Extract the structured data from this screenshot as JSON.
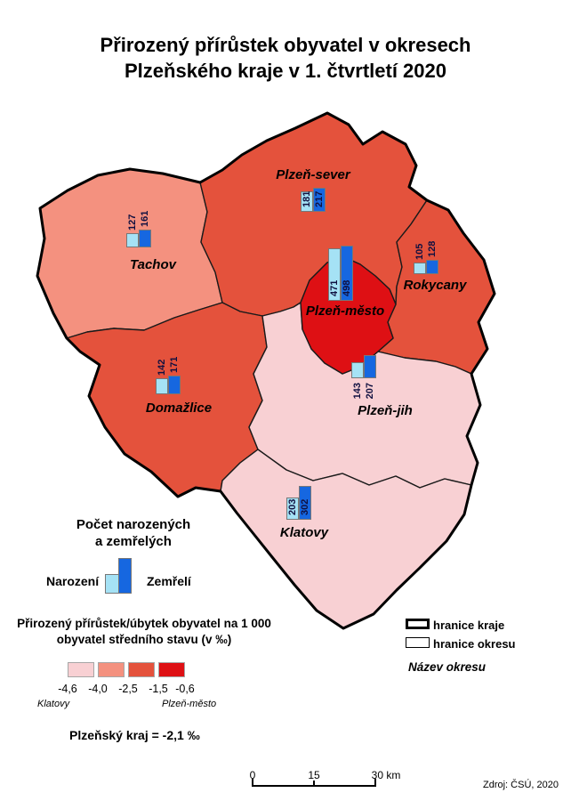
{
  "title": {
    "line1": "Přirozený přírůstek obyvatel v okresech",
    "line2": "Plzeňského kraje v 1. čtvrtletí 2020"
  },
  "map": {
    "districts": [
      {
        "id": "tachov",
        "name": "Tachov",
        "born": 127,
        "deaths": 161,
        "color": "#F4917F"
      },
      {
        "id": "plzen-sever",
        "name": "Plzeň-sever",
        "born": 181,
        "deaths": 217,
        "color": "#E4523C"
      },
      {
        "id": "plzen-mesto",
        "name": "Plzeň-město",
        "born": 471,
        "deaths": 498,
        "color": "#DE1014"
      },
      {
        "id": "rokycany",
        "name": "Rokycany",
        "born": 105,
        "deaths": 128,
        "color": "#E4523C"
      },
      {
        "id": "domazlice",
        "name": "Domažlice",
        "born": 142,
        "deaths": 171,
        "color": "#E4523C"
      },
      {
        "id": "plzen-jih",
        "name": "Plzeň-jih",
        "born": 143,
        "deaths": 207,
        "color": "#F8D0D3"
      },
      {
        "id": "klatovy",
        "name": "Klatovy",
        "born": 203,
        "deaths": 302,
        "color": "#F8D0D3"
      }
    ]
  },
  "chart_data": {
    "type": "bar",
    "categories": [
      "Tachov",
      "Plzeň-sever",
      "Plzeň-město",
      "Rokycany",
      "Domažlice",
      "Plzeň-jih",
      "Klatovy"
    ],
    "series": [
      {
        "name": "Narození",
        "values": [
          127,
          181,
          471,
          105,
          142,
          143,
          203
        ]
      },
      {
        "name": "Zemřelí",
        "values": [
          161,
          217,
          498,
          128,
          171,
          207,
          302
        ]
      }
    ],
    "title": "Počet narozených a zemřelých"
  },
  "bar_legend": {
    "heading_line1": "Počet narozených",
    "heading_line2": "a zemřelých",
    "born_label": "Narození",
    "deaths_label": "Zemřelí",
    "born_color": "#A5E2F5",
    "deaths_color": "#1667E0"
  },
  "scale_legend": {
    "heading_line1": "Přirozený přírůstek/úbytek obyvatel na 1 000",
    "heading_line2": "obyvatel středního stavu (v ‰)",
    "ticks": [
      "-4,6",
      "-4,0",
      "-2,5",
      "-1,5",
      "-0,6"
    ],
    "class_colors": [
      "#F8D0D3",
      "#F4917F",
      "#E4523C",
      "#DE1014"
    ],
    "min_label": "Klatovy",
    "max_label": "Plzeň-město"
  },
  "region_note": "Plzeňský kraj = -2,1 ‰",
  "boundary_legend": {
    "kraj": "hranice kraje",
    "okres": "hranice okresu",
    "nazev": "Název okresu"
  },
  "scalebar": {
    "start": "0",
    "middle": "15",
    "end": "30 km"
  },
  "source": "Zdroj: ČSÚ, 2020"
}
